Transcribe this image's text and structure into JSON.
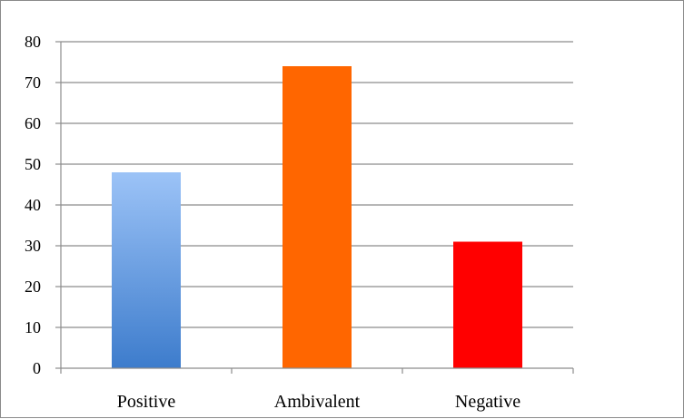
{
  "chart_data": {
    "type": "bar",
    "categories": [
      "Positive",
      "Ambivalent",
      "Negative"
    ],
    "values": [
      48,
      74,
      31
    ],
    "title": "",
    "xlabel": "",
    "ylabel": "",
    "ylim": [
      0,
      80
    ],
    "yticks": [
      0,
      10,
      20,
      30,
      40,
      50,
      60,
      70,
      80
    ],
    "grid": true,
    "legend": "none",
    "colors": [
      "#5b95de",
      "#ff6600",
      "#ff0000"
    ],
    "gradient_first_bar": {
      "top": "#9cc3f7",
      "bottom": "#3d7ccc"
    }
  }
}
